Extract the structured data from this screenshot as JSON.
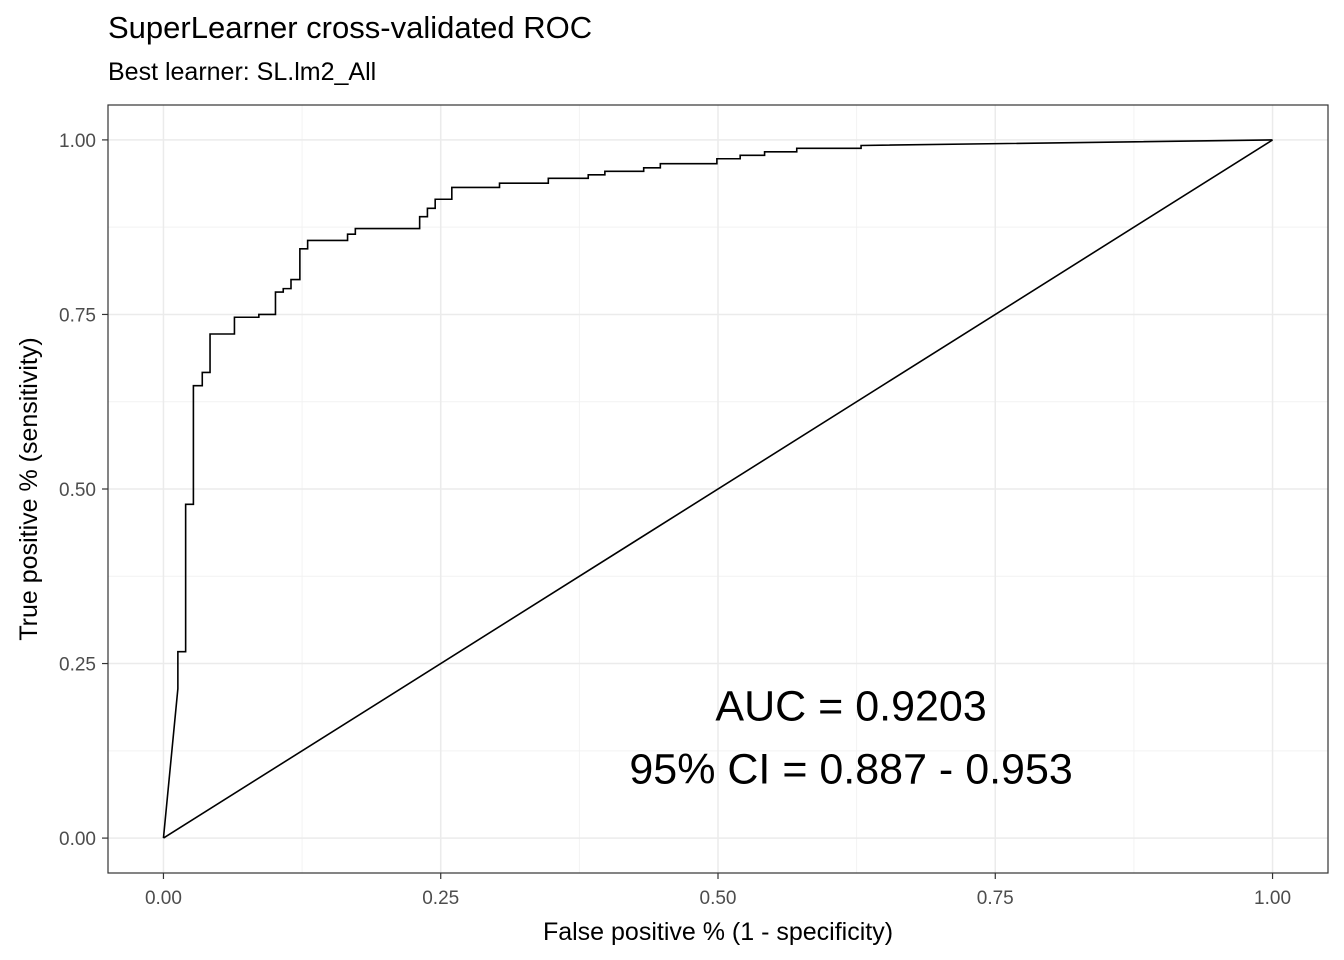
{
  "chart_data": {
    "type": "line",
    "title": "SuperLearner cross-validated ROC",
    "subtitle": "Best learner: SL.lm2_All",
    "xlabel": "False positive % (1 - specificity)",
    "ylabel": "True positive % (sensitivity)",
    "xlim": [
      -0.05,
      1.05
    ],
    "ylim": [
      -0.05,
      1.05
    ],
    "x_ticks": [
      "0.00",
      "0.25",
      "0.50",
      "0.75",
      "1.00"
    ],
    "y_ticks": [
      "0.00",
      "0.25",
      "0.50",
      "0.75",
      "1.00"
    ],
    "grid": true,
    "series": [
      {
        "points": [
          [
            0.0,
            0.0
          ],
          [
            0.013,
            0.214
          ],
          [
            0.013,
            0.267
          ],
          [
            0.02,
            0.267
          ],
          [
            0.02,
            0.478
          ],
          [
            0.027,
            0.478
          ],
          [
            0.027,
            0.648
          ],
          [
            0.035,
            0.648
          ],
          [
            0.035,
            0.667
          ],
          [
            0.042,
            0.667
          ],
          [
            0.042,
            0.722
          ],
          [
            0.064,
            0.722
          ],
          [
            0.064,
            0.746
          ],
          [
            0.086,
            0.746
          ],
          [
            0.086,
            0.75
          ],
          [
            0.101,
            0.75
          ],
          [
            0.101,
            0.782
          ],
          [
            0.108,
            0.782
          ],
          [
            0.108,
            0.787
          ],
          [
            0.115,
            0.787
          ],
          [
            0.115,
            0.8
          ],
          [
            0.123,
            0.8
          ],
          [
            0.123,
            0.844
          ],
          [
            0.13,
            0.844
          ],
          [
            0.13,
            0.856
          ],
          [
            0.166,
            0.856
          ],
          [
            0.166,
            0.865
          ],
          [
            0.173,
            0.865
          ],
          [
            0.173,
            0.873
          ],
          [
            0.231,
            0.873
          ],
          [
            0.231,
            0.89
          ],
          [
            0.238,
            0.89
          ],
          [
            0.238,
            0.902
          ],
          [
            0.245,
            0.902
          ],
          [
            0.245,
            0.915
          ],
          [
            0.26,
            0.915
          ],
          [
            0.26,
            0.932
          ],
          [
            0.303,
            0.932
          ],
          [
            0.303,
            0.938
          ],
          [
            0.347,
            0.938
          ],
          [
            0.347,
            0.945
          ],
          [
            0.383,
            0.945
          ],
          [
            0.383,
            0.95
          ],
          [
            0.398,
            0.95
          ],
          [
            0.398,
            0.955
          ],
          [
            0.433,
            0.955
          ],
          [
            0.433,
            0.96
          ],
          [
            0.448,
            0.96
          ],
          [
            0.448,
            0.966
          ],
          [
            0.499,
            0.966
          ],
          [
            0.499,
            0.973
          ],
          [
            0.52,
            0.973
          ],
          [
            0.52,
            0.978
          ],
          [
            0.542,
            0.978
          ],
          [
            0.542,
            0.983
          ],
          [
            0.571,
            0.983
          ],
          [
            0.571,
            0.988
          ],
          [
            0.629,
            0.988
          ],
          [
            0.629,
            0.992
          ],
          [
            1.0,
            1.0
          ]
        ]
      },
      {
        "points": [
          [
            0.0,
            0.0
          ],
          [
            1.0,
            1.0
          ]
        ]
      }
    ],
    "annotations": [
      {
        "text": "AUC = 0.9203",
        "x": 0.62,
        "y": 0.19
      },
      {
        "text": "95% CI = 0.887 - 0.953",
        "x": 0.62,
        "y": 0.1
      }
    ]
  }
}
